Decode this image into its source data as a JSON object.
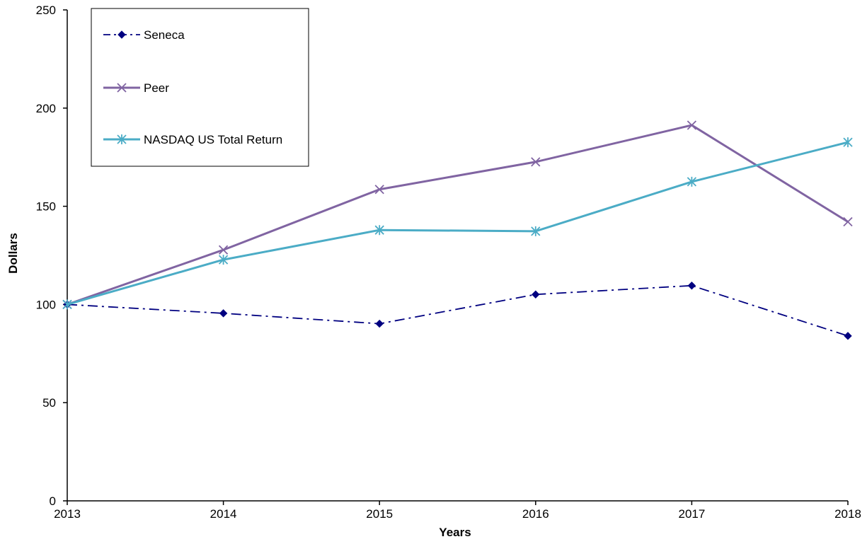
{
  "chart_data": {
    "type": "line",
    "title": "",
    "xlabel": "Years",
    "ylabel": "Dollars",
    "categories": [
      "2013",
      "2014",
      "2015",
      "2016",
      "2017",
      "2018"
    ],
    "ylim": [
      0,
      250
    ],
    "yticks": [
      "0",
      "50",
      "100",
      "150",
      "200",
      "250"
    ],
    "grid": false,
    "legend_position": "top-left",
    "series": [
      {
        "name": "Seneca",
        "values": [
          100,
          95.5,
          90.2,
          105.1,
          109.6,
          84.0
        ],
        "color": "#000080",
        "line_style": "dash-dot",
        "marker": "diamond"
      },
      {
        "name": "Peer",
        "values": [
          100,
          127.8,
          158.6,
          172.6,
          191.3,
          142.1
        ],
        "color": "#8064A2",
        "line_style": "solid",
        "marker": "x"
      },
      {
        "name": "NASDAQ US Total Return",
        "values": [
          100,
          122.8,
          137.9,
          137.3,
          162.5,
          182.6
        ],
        "color": "#4BACC6",
        "line_style": "solid",
        "marker": "asterisk"
      }
    ]
  }
}
